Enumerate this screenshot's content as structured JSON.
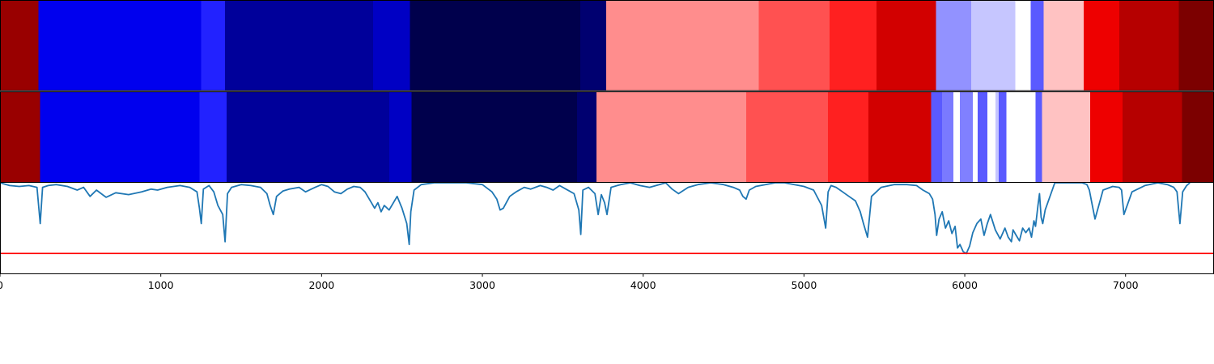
{
  "chart_data": {
    "type": "heatmap",
    "title": "",
    "xlabel": "",
    "ylabel": "",
    "xlim": [
      0,
      7550
    ],
    "x_ticks": [
      0,
      1000,
      2000,
      3000,
      4000,
      5000,
      6000,
      7000
    ],
    "x_tick_labels": [
      "0",
      "1000",
      "2000",
      "3000",
      "4000",
      "5000",
      "6000",
      "7000"
    ],
    "grid": false,
    "legend": "none",
    "colors": {
      "line": "#1f77b4",
      "threshold": "#ff0000",
      "frame": "#000000",
      "divider": "#ffffff"
    },
    "rows": [
      {
        "segments": [
          {
            "start": 0,
            "end": 240,
            "color": "#990000"
          },
          {
            "start": 240,
            "end": 1250,
            "color": "#0000ee"
          },
          {
            "start": 1250,
            "end": 1400,
            "color": "#2222ff"
          },
          {
            "start": 1400,
            "end": 2320,
            "color": "#00009a"
          },
          {
            "start": 2320,
            "end": 2550,
            "color": "#0000c4"
          },
          {
            "start": 2550,
            "end": 3610,
            "color": "#00004c"
          },
          {
            "start": 3610,
            "end": 3770,
            "color": "#000070"
          },
          {
            "start": 3770,
            "end": 4720,
            "color": "#ff8d8d"
          },
          {
            "start": 4720,
            "end": 5160,
            "color": "#ff5151"
          },
          {
            "start": 5160,
            "end": 5450,
            "color": "#ff2020"
          },
          {
            "start": 5450,
            "end": 5820,
            "color": "#d20000"
          },
          {
            "start": 5820,
            "end": 6040,
            "color": "#9292ff"
          },
          {
            "start": 6040,
            "end": 6315,
            "color": "#c6c6ff"
          },
          {
            "start": 6315,
            "end": 6410,
            "color": "#ffffff"
          },
          {
            "start": 6410,
            "end": 6490,
            "color": "#5a5aff"
          },
          {
            "start": 6490,
            "end": 6740,
            "color": "#ffc2c2"
          },
          {
            "start": 6740,
            "end": 6960,
            "color": "#ee0000"
          },
          {
            "start": 6960,
            "end": 7330,
            "color": "#b60000"
          },
          {
            "start": 7330,
            "end": 7550,
            "color": "#7c0000"
          }
        ]
      },
      {
        "segments": [
          {
            "start": 0,
            "end": 250,
            "color": "#990000"
          },
          {
            "start": 250,
            "end": 1240,
            "color": "#0000ee"
          },
          {
            "start": 1240,
            "end": 1410,
            "color": "#2222ff"
          },
          {
            "start": 1410,
            "end": 2420,
            "color": "#00009a"
          },
          {
            "start": 2420,
            "end": 2560,
            "color": "#0000c4"
          },
          {
            "start": 2560,
            "end": 3590,
            "color": "#00004c"
          },
          {
            "start": 3590,
            "end": 3710,
            "color": "#000070"
          },
          {
            "start": 3710,
            "end": 4640,
            "color": "#ff8d8d"
          },
          {
            "start": 4640,
            "end": 5150,
            "color": "#ff5151"
          },
          {
            "start": 5150,
            "end": 5400,
            "color": "#ff2020"
          },
          {
            "start": 5400,
            "end": 5790,
            "color": "#d20000"
          },
          {
            "start": 5790,
            "end": 5860,
            "color": "#5a5aff"
          },
          {
            "start": 5860,
            "end": 5930,
            "color": "#7a7aff"
          },
          {
            "start": 5930,
            "end": 5970,
            "color": "#ffffff"
          },
          {
            "start": 5970,
            "end": 6050,
            "color": "#8080ff"
          },
          {
            "start": 6050,
            "end": 6080,
            "color": "#ffffff"
          },
          {
            "start": 6080,
            "end": 6140,
            "color": "#5a5aff"
          },
          {
            "start": 6140,
            "end": 6190,
            "color": "#ffffff"
          },
          {
            "start": 6190,
            "end": 6210,
            "color": "#c6c6ff"
          },
          {
            "start": 6210,
            "end": 6260,
            "color": "#5a5aff"
          },
          {
            "start": 6260,
            "end": 6440,
            "color": "#ffffff"
          },
          {
            "start": 6440,
            "end": 6480,
            "color": "#5a5aff"
          },
          {
            "start": 6480,
            "end": 6780,
            "color": "#ffc2c2"
          },
          {
            "start": 6780,
            "end": 6980,
            "color": "#ee0000"
          },
          {
            "start": 6980,
            "end": 7350,
            "color": "#b60000"
          },
          {
            "start": 7350,
            "end": 7550,
            "color": "#7c0000"
          }
        ]
      }
    ],
    "line": {
      "threshold": 0.22,
      "ylim": [
        0,
        1
      ],
      "x": [
        0,
        60,
        120,
        180,
        230,
        250,
        265,
        300,
        350,
        420,
        480,
        520,
        560,
        600,
        660,
        720,
        800,
        880,
        940,
        980,
        1040,
        1120,
        1180,
        1225,
        1240,
        1252,
        1265,
        1300,
        1330,
        1355,
        1385,
        1400,
        1415,
        1440,
        1500,
        1560,
        1620,
        1660,
        1680,
        1700,
        1720,
        1760,
        1800,
        1860,
        1900,
        1960,
        2000,
        2040,
        2080,
        2120,
        2160,
        2200,
        2240,
        2270,
        2310,
        2330,
        2350,
        2370,
        2390,
        2420,
        2470,
        2500,
        2530,
        2545,
        2555,
        2575,
        2620,
        2700,
        2800,
        2900,
        3000,
        3060,
        3090,
        3110,
        3130,
        3170,
        3210,
        3260,
        3300,
        3360,
        3400,
        3440,
        3480,
        3520,
        3570,
        3600,
        3612,
        3625,
        3660,
        3700,
        3720,
        3740,
        3760,
        3775,
        3800,
        3860,
        3920,
        3980,
        4040,
        4100,
        4140,
        4180,
        4220,
        4280,
        4340,
        4420,
        4500,
        4560,
        4600,
        4620,
        4640,
        4660,
        4700,
        4760,
        4820,
        4880,
        4940,
        5000,
        5060,
        5110,
        5135,
        5150,
        5168,
        5200,
        5240,
        5280,
        5320,
        5350,
        5370,
        5395,
        5420,
        5480,
        5560,
        5640,
        5700,
        5740,
        5780,
        5800,
        5815,
        5825,
        5840,
        5860,
        5880,
        5900,
        5920,
        5940,
        5955,
        5970,
        5990,
        6010,
        6030,
        6050,
        6075,
        6100,
        6120,
        6140,
        6160,
        6190,
        6220,
        6250,
        6270,
        6290,
        6300,
        6320,
        6340,
        6360,
        6380,
        6400,
        6415,
        6430,
        6440,
        6455,
        6465,
        6475,
        6485,
        6500,
        6560,
        6620,
        6680,
        6730,
        6760,
        6775,
        6790,
        6810,
        6860,
        6920,
        6960,
        6975,
        6990,
        7040,
        7120,
        7200,
        7260,
        7300,
        7320,
        7338,
        7355,
        7380,
        7400
      ],
      "y": [
        1.0,
        0.97,
        0.96,
        0.97,
        0.95,
        0.55,
        0.95,
        0.97,
        0.98,
        0.96,
        0.92,
        0.95,
        0.85,
        0.92,
        0.84,
        0.89,
        0.87,
        0.9,
        0.93,
        0.92,
        0.95,
        0.97,
        0.95,
        0.9,
        0.72,
        0.55,
        0.93,
        0.97,
        0.9,
        0.75,
        0.65,
        0.35,
        0.88,
        0.95,
        0.98,
        0.97,
        0.95,
        0.88,
        0.75,
        0.65,
        0.85,
        0.91,
        0.93,
        0.95,
        0.9,
        0.95,
        0.98,
        0.96,
        0.9,
        0.88,
        0.93,
        0.96,
        0.95,
        0.9,
        0.78,
        0.72,
        0.78,
        0.68,
        0.75,
        0.7,
        0.85,
        0.72,
        0.55,
        0.32,
        0.68,
        0.92,
        0.98,
        1.0,
        1.0,
        1.0,
        0.98,
        0.9,
        0.82,
        0.7,
        0.72,
        0.85,
        0.9,
        0.95,
        0.93,
        0.97,
        0.95,
        0.92,
        0.97,
        0.93,
        0.88,
        0.7,
        0.43,
        0.92,
        0.95,
        0.88,
        0.65,
        0.87,
        0.78,
        0.65,
        0.95,
        0.98,
        1.0,
        0.97,
        0.95,
        0.98,
        1.0,
        0.93,
        0.88,
        0.95,
        0.98,
        1.0,
        0.98,
        0.95,
        0.92,
        0.85,
        0.82,
        0.92,
        0.96,
        0.98,
        1.0,
        1.0,
        0.98,
        0.96,
        0.92,
        0.75,
        0.5,
        0.9,
        0.97,
        0.95,
        0.9,
        0.85,
        0.8,
        0.68,
        0.55,
        0.4,
        0.85,
        0.95,
        0.98,
        0.98,
        0.97,
        0.92,
        0.88,
        0.82,
        0.65,
        0.42,
        0.6,
        0.68,
        0.5,
        0.58,
        0.44,
        0.52,
        0.28,
        0.32,
        0.24,
        0.22,
        0.3,
        0.45,
        0.55,
        0.6,
        0.42,
        0.55,
        0.65,
        0.48,
        0.38,
        0.5,
        0.4,
        0.35,
        0.48,
        0.42,
        0.36,
        0.5,
        0.45,
        0.5,
        0.4,
        0.58,
        0.52,
        0.75,
        0.88,
        0.62,
        0.55,
        0.7,
        1.0,
        1.0,
        1.0,
        1.0,
        0.98,
        0.92,
        0.78,
        0.6,
        0.92,
        0.96,
        0.95,
        0.92,
        0.65,
        0.9,
        0.97,
        1.0,
        0.98,
        0.95,
        0.9,
        0.55,
        0.9,
        0.97,
        1.0
      ]
    }
  }
}
